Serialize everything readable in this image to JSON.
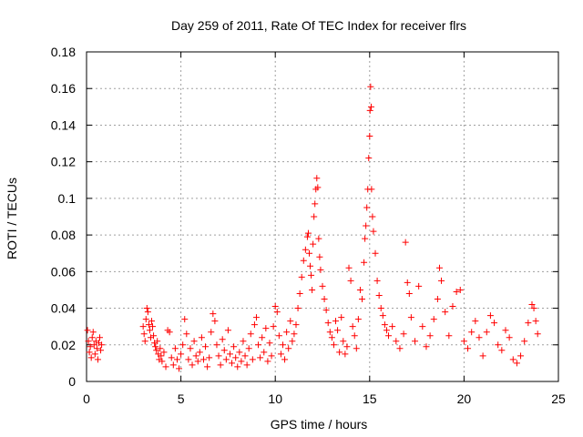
{
  "chart_data": {
    "type": "scatter",
    "title": "Day 259 of 2011, Rate Of TEC Index for receiver flrs",
    "xlabel": "GPS time / hours",
    "ylabel": "ROTI / TECUs",
    "xlim": [
      0,
      25
    ],
    "ylim": [
      0,
      0.18
    ],
    "x_ticks": [
      0,
      5,
      10,
      15,
      20,
      25
    ],
    "x_tick_labels": [
      "0",
      "5",
      "10",
      "15",
      "20",
      "25"
    ],
    "y_ticks": [
      0,
      0.02,
      0.04,
      0.06,
      0.08,
      0.1,
      0.12,
      0.14,
      0.16,
      0.18
    ],
    "y_tick_labels": [
      "0",
      "0.02",
      "0.04",
      "0.06",
      "0.08",
      "0.1",
      "0.12",
      "0.14",
      "0.16",
      "0.18"
    ],
    "grid": true,
    "marker": "+",
    "marker_color": "#ff0000",
    "series": [
      {
        "name": "ROTI",
        "points": [
          [
            0.05,
            0.028
          ],
          [
            0.1,
            0.022
          ],
          [
            0.15,
            0.016
          ],
          [
            0.2,
            0.019
          ],
          [
            0.25,
            0.013
          ],
          [
            0.3,
            0.024
          ],
          [
            0.35,
            0.027
          ],
          [
            0.4,
            0.02
          ],
          [
            0.45,
            0.015
          ],
          [
            0.5,
            0.022
          ],
          [
            0.55,
            0.018
          ],
          [
            0.6,
            0.012
          ],
          [
            0.65,
            0.021
          ],
          [
            0.7,
            0.024
          ],
          [
            0.75,
            0.017
          ],
          [
            0.8,
            0.02
          ],
          [
            3.0,
            0.03
          ],
          [
            3.05,
            0.026
          ],
          [
            3.1,
            0.022
          ],
          [
            3.15,
            0.034
          ],
          [
            3.2,
            0.04
          ],
          [
            3.25,
            0.038
          ],
          [
            3.3,
            0.031
          ],
          [
            3.35,
            0.028
          ],
          [
            3.4,
            0.024
          ],
          [
            3.45,
            0.033
          ],
          [
            3.5,
            0.03
          ],
          [
            3.55,
            0.025
          ],
          [
            3.6,
            0.021
          ],
          [
            3.65,
            0.019
          ],
          [
            3.7,
            0.017
          ],
          [
            3.75,
            0.022
          ],
          [
            3.8,
            0.015
          ],
          [
            3.85,
            0.012
          ],
          [
            3.9,
            0.018
          ],
          [
            3.95,
            0.014
          ],
          [
            4.0,
            0.011
          ],
          [
            4.1,
            0.016
          ],
          [
            4.2,
            0.008
          ],
          [
            4.3,
            0.028
          ],
          [
            4.4,
            0.027
          ],
          [
            4.5,
            0.013
          ],
          [
            4.6,
            0.009
          ],
          [
            4.7,
            0.018
          ],
          [
            4.8,
            0.012
          ],
          [
            4.9,
            0.007
          ],
          [
            5.0,
            0.015
          ],
          [
            5.1,
            0.02
          ],
          [
            5.2,
            0.034
          ],
          [
            5.3,
            0.026
          ],
          [
            5.4,
            0.012
          ],
          [
            5.5,
            0.018
          ],
          [
            5.6,
            0.009
          ],
          [
            5.7,
            0.022
          ],
          [
            5.8,
            0.014
          ],
          [
            5.9,
            0.011
          ],
          [
            6.0,
            0.016
          ],
          [
            6.1,
            0.024
          ],
          [
            6.2,
            0.012
          ],
          [
            6.3,
            0.019
          ],
          [
            6.4,
            0.008
          ],
          [
            6.5,
            0.013
          ],
          [
            6.6,
            0.027
          ],
          [
            6.7,
            0.037
          ],
          [
            6.8,
            0.033
          ],
          [
            6.9,
            0.02
          ],
          [
            7.0,
            0.014
          ],
          [
            7.1,
            0.009
          ],
          [
            7.2,
            0.023
          ],
          [
            7.3,
            0.017
          ],
          [
            7.4,
            0.012
          ],
          [
            7.5,
            0.028
          ],
          [
            7.6,
            0.015
          ],
          [
            7.7,
            0.01
          ],
          [
            7.8,
            0.019
          ],
          [
            7.9,
            0.013
          ],
          [
            8.0,
            0.008
          ],
          [
            8.1,
            0.016
          ],
          [
            8.2,
            0.011
          ],
          [
            8.3,
            0.022
          ],
          [
            8.4,
            0.014
          ],
          [
            8.5,
            0.009
          ],
          [
            8.6,
            0.018
          ],
          [
            8.7,
            0.026
          ],
          [
            8.8,
            0.012
          ],
          [
            8.9,
            0.031
          ],
          [
            9.0,
            0.035
          ],
          [
            9.1,
            0.02
          ],
          [
            9.2,
            0.013
          ],
          [
            9.3,
            0.024
          ],
          [
            9.4,
            0.016
          ],
          [
            9.5,
            0.029
          ],
          [
            9.6,
            0.011
          ],
          [
            9.7,
            0.021
          ],
          [
            9.8,
            0.014
          ],
          [
            9.9,
            0.03
          ],
          [
            10.0,
            0.041
          ],
          [
            10.1,
            0.038
          ],
          [
            10.2,
            0.025
          ],
          [
            10.3,
            0.015
          ],
          [
            10.4,
            0.02
          ],
          [
            10.5,
            0.012
          ],
          [
            10.6,
            0.027
          ],
          [
            10.7,
            0.018
          ],
          [
            10.8,
            0.033
          ],
          [
            10.9,
            0.022
          ],
          [
            11.0,
            0.026
          ],
          [
            11.1,
            0.031
          ],
          [
            11.2,
            0.04
          ],
          [
            11.3,
            0.048
          ],
          [
            11.4,
            0.057
          ],
          [
            11.5,
            0.066
          ],
          [
            11.6,
            0.072
          ],
          [
            11.7,
            0.079
          ],
          [
            11.75,
            0.081
          ],
          [
            11.8,
            0.07
          ],
          [
            11.85,
            0.063
          ],
          [
            11.9,
            0.058
          ],
          [
            11.95,
            0.05
          ],
          [
            12.0,
            0.075
          ],
          [
            12.05,
            0.09
          ],
          [
            12.1,
            0.097
          ],
          [
            12.15,
            0.105
          ],
          [
            12.2,
            0.111
          ],
          [
            12.25,
            0.106
          ],
          [
            12.3,
            0.078
          ],
          [
            12.35,
            0.068
          ],
          [
            12.4,
            0.061
          ],
          [
            12.5,
            0.052
          ],
          [
            12.6,
            0.045
          ],
          [
            12.7,
            0.039
          ],
          [
            12.8,
            0.032
          ],
          [
            12.9,
            0.027
          ],
          [
            13.0,
            0.024
          ],
          [
            13.1,
            0.02
          ],
          [
            13.2,
            0.033
          ],
          [
            13.3,
            0.028
          ],
          [
            13.4,
            0.016
          ],
          [
            13.5,
            0.035
          ],
          [
            13.6,
            0.022
          ],
          [
            13.7,
            0.015
          ],
          [
            13.8,
            0.019
          ],
          [
            13.9,
            0.062
          ],
          [
            14.0,
            0.055
          ],
          [
            14.1,
            0.03
          ],
          [
            14.2,
            0.025
          ],
          [
            14.3,
            0.018
          ],
          [
            14.4,
            0.034
          ],
          [
            14.5,
            0.05
          ],
          [
            14.6,
            0.045
          ],
          [
            14.7,
            0.065
          ],
          [
            14.75,
            0.078
          ],
          [
            14.8,
            0.085
          ],
          [
            14.85,
            0.095
          ],
          [
            14.9,
            0.105
          ],
          [
            14.95,
            0.122
          ],
          [
            15.0,
            0.134
          ],
          [
            15.02,
            0.148
          ],
          [
            15.05,
            0.161
          ],
          [
            15.08,
            0.15
          ],
          [
            15.1,
            0.105
          ],
          [
            15.15,
            0.09
          ],
          [
            15.2,
            0.082
          ],
          [
            15.3,
            0.07
          ],
          [
            15.4,
            0.055
          ],
          [
            15.5,
            0.047
          ],
          [
            15.6,
            0.04
          ],
          [
            15.7,
            0.036
          ],
          [
            15.8,
            0.031
          ],
          [
            15.9,
            0.028
          ],
          [
            16.0,
            0.025
          ],
          [
            16.2,
            0.03
          ],
          [
            16.4,
            0.022
          ],
          [
            16.6,
            0.018
          ],
          [
            16.8,
            0.026
          ],
          [
            16.9,
            0.076
          ],
          [
            17.0,
            0.054
          ],
          [
            17.1,
            0.048
          ],
          [
            17.2,
            0.035
          ],
          [
            17.4,
            0.022
          ],
          [
            17.6,
            0.052
          ],
          [
            17.8,
            0.03
          ],
          [
            18.0,
            0.019
          ],
          [
            18.2,
            0.025
          ],
          [
            18.4,
            0.034
          ],
          [
            18.6,
            0.045
          ],
          [
            18.7,
            0.062
          ],
          [
            18.8,
            0.055
          ],
          [
            19.0,
            0.038
          ],
          [
            19.2,
            0.025
          ],
          [
            19.4,
            0.041
          ],
          [
            19.6,
            0.049
          ],
          [
            19.8,
            0.05
          ],
          [
            20.0,
            0.022
          ],
          [
            20.2,
            0.018
          ],
          [
            20.4,
            0.027
          ],
          [
            20.6,
            0.033
          ],
          [
            20.8,
            0.024
          ],
          [
            21.0,
            0.014
          ],
          [
            21.2,
            0.027
          ],
          [
            21.4,
            0.036
          ],
          [
            21.6,
            0.032
          ],
          [
            21.8,
            0.02
          ],
          [
            22.0,
            0.017
          ],
          [
            22.2,
            0.028
          ],
          [
            22.4,
            0.024
          ],
          [
            22.6,
            0.012
          ],
          [
            22.8,
            0.01
          ],
          [
            23.0,
            0.014
          ],
          [
            23.2,
            0.022
          ],
          [
            23.4,
            0.032
          ],
          [
            23.6,
            0.042
          ],
          [
            23.7,
            0.04
          ],
          [
            23.8,
            0.033
          ],
          [
            23.9,
            0.026
          ]
        ]
      }
    ]
  }
}
